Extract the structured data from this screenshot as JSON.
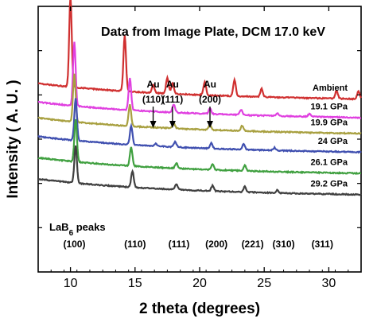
{
  "chart_data": {
    "type": "line",
    "title": "Data from Image Plate, DCM 17.0 keV",
    "xlabel": "2 theta (degrees)",
    "ylabel": "Intensity ( A. U. )",
    "xlim": [
      7.5,
      32.5
    ],
    "ylim": [
      0,
      1
    ],
    "xticks": [
      10,
      15,
      20,
      25,
      30
    ],
    "grid": false,
    "series": [
      {
        "name": "Ambient",
        "color": "#d03030",
        "offset": 0.66,
        "peaks": [
          [
            10.0,
            0.34
          ],
          [
            14.2,
            0.21
          ],
          [
            16.4,
            0.03
          ],
          [
            17.5,
            0.06
          ],
          [
            17.9,
            0.04
          ],
          [
            20.4,
            0.05
          ],
          [
            22.7,
            0.06
          ],
          [
            24.8,
            0.03
          ],
          [
            30.6,
            0.03
          ],
          [
            32.3,
            0.03
          ]
        ]
      },
      {
        "name": "19.1 GPa",
        "color": "#e040e0",
        "offset": 0.59,
        "peaks": [
          [
            10.3,
            0.24
          ],
          [
            14.6,
            0.12
          ],
          [
            18.0,
            0.03
          ],
          [
            20.8,
            0.02
          ],
          [
            23.2,
            0.02
          ],
          [
            26.0,
            0.01
          ],
          [
            28.5,
            0.01
          ]
        ]
      },
      {
        "name": "19.9 GPa",
        "color": "#a8a040",
        "offset": 0.53,
        "peaks": [
          [
            10.3,
            0.18
          ],
          [
            14.6,
            0.08
          ],
          [
            18.0,
            0.02
          ],
          [
            20.8,
            0.02
          ],
          [
            23.3,
            0.02
          ]
        ]
      },
      {
        "name": "24 GPa",
        "color": "#4050b0",
        "offset": 0.46,
        "peaks": [
          [
            10.4,
            0.16
          ],
          [
            14.7,
            0.07
          ],
          [
            16.6,
            0.01
          ],
          [
            18.1,
            0.02
          ],
          [
            20.9,
            0.02
          ],
          [
            23.4,
            0.02
          ],
          [
            25.8,
            0.01
          ]
        ]
      },
      {
        "name": "26.1 GPa",
        "color": "#40a040",
        "offset": 0.38,
        "peaks": [
          [
            10.4,
            0.16
          ],
          [
            14.7,
            0.07
          ],
          [
            18.2,
            0.02
          ],
          [
            21.0,
            0.02
          ],
          [
            23.5,
            0.02
          ]
        ]
      },
      {
        "name": "29.2 GPa",
        "color": "#404040",
        "offset": 0.3,
        "peaks": [
          [
            10.4,
            0.14
          ],
          [
            14.8,
            0.06
          ],
          [
            18.2,
            0.02
          ],
          [
            21.0,
            0.02
          ],
          [
            23.5,
            0.02
          ],
          [
            26.0,
            0.01
          ]
        ]
      }
    ],
    "annotations": [
      {
        "label": "Au",
        "hkl": "(110)",
        "x": 16.4
      },
      {
        "label": "Au",
        "hkl": "(111)",
        "x": 17.9
      },
      {
        "label": "Au",
        "hkl": "(200)",
        "x": 20.8
      }
    ],
    "lab6_label": {
      "main": "LaB",
      "sub": "6",
      "rest": " peaks"
    },
    "lab6_hkl": [
      {
        "label": "(100)",
        "x": 10.3
      },
      {
        "label": "(110)",
        "x": 15.0
      },
      {
        "label": "(111)",
        "x": 18.4
      },
      {
        "label": "(200)",
        "x": 21.3
      },
      {
        "label": "(221)",
        "x": 24.1
      },
      {
        "label": "(310)",
        "x": 26.5
      },
      {
        "label": "(311)",
        "x": 29.5
      }
    ]
  }
}
